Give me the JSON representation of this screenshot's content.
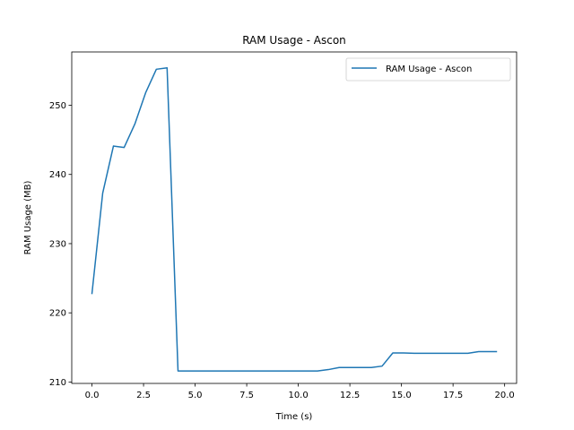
{
  "chart_data": {
    "type": "line",
    "title": "RAM Usage - Ascon",
    "xlabel": "Time (s)",
    "ylabel": "RAM Usage (MB)",
    "xlim": [
      -0.98,
      20.58
    ],
    "ylim": [
      209.8,
      257.7
    ],
    "x_ticks": [
      0.0,
      2.5,
      5.0,
      7.5,
      10.0,
      12.5,
      15.0,
      17.5,
      20.0
    ],
    "x_tick_labels": [
      "0.0",
      "2.5",
      "5.0",
      "7.5",
      "10.0",
      "12.5",
      "15.0",
      "17.5",
      "20.0"
    ],
    "y_ticks": [
      210,
      220,
      230,
      240,
      250
    ],
    "y_tick_labels": [
      "210",
      "220",
      "230",
      "240",
      "250"
    ],
    "grid": false,
    "legend_position": "top-right",
    "series": [
      {
        "name": "RAM Usage - Ascon",
        "color": "#1f77b4",
        "x": [
          0.0,
          0.52,
          1.04,
          1.56,
          2.08,
          2.6,
          3.12,
          3.64,
          4.17,
          4.69,
          5.21,
          5.73,
          6.25,
          6.77,
          7.29,
          7.81,
          8.33,
          8.85,
          9.37,
          9.89,
          10.41,
          10.93,
          11.46,
          11.98,
          12.5,
          13.02,
          13.54,
          14.06,
          14.58,
          15.1,
          15.62,
          16.14,
          16.66,
          17.18,
          17.7,
          18.22,
          18.74,
          19.26,
          19.6
        ],
        "values": [
          222.8,
          237.3,
          244.1,
          243.9,
          247.3,
          251.8,
          255.2,
          255.4,
          211.6,
          211.6,
          211.6,
          211.6,
          211.6,
          211.6,
          211.6,
          211.6,
          211.6,
          211.6,
          211.6,
          211.6,
          211.6,
          211.6,
          211.8,
          212.1,
          212.1,
          212.1,
          212.1,
          212.3,
          214.2,
          214.2,
          214.15,
          214.15,
          214.15,
          214.15,
          214.15,
          214.15,
          214.4,
          214.4,
          214.4
        ]
      }
    ]
  }
}
